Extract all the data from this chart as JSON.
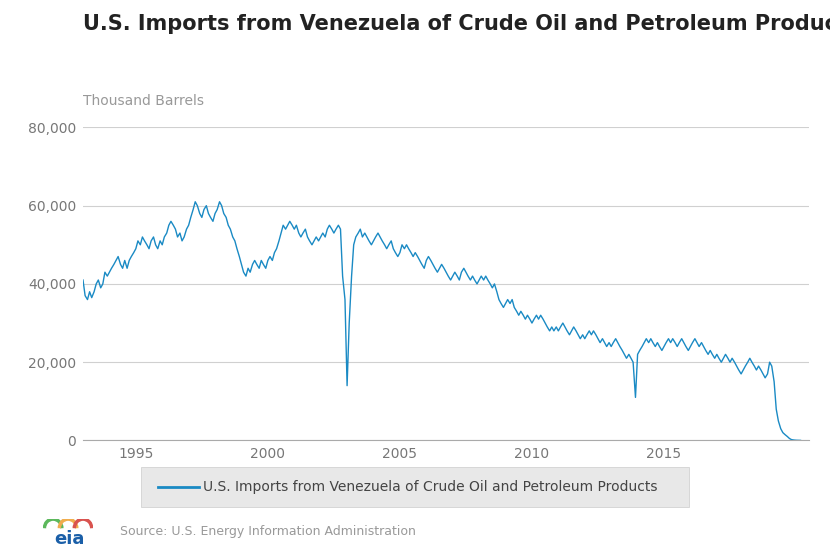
{
  "title": "U.S. Imports from Venezuela of Crude Oil and Petroleum Products",
  "ylabel": "Thousand Barrels",
  "legend_label": "U.S. Imports from Venezuela of Crude Oil and Petroleum Products",
  "source": "Source: U.S. Energy Information Administration",
  "line_color": "#1a8ac4",
  "background_color": "#ffffff",
  "ylim": [
    0,
    80000
  ],
  "yticks": [
    0,
    20000,
    40000,
    60000,
    80000
  ],
  "ytick_labels": [
    "0",
    "20,000",
    "40,000",
    "60,000",
    "80,000"
  ],
  "xtick_years": [
    1995,
    2000,
    2005,
    2010,
    2015
  ],
  "xmin": 1993.0,
  "xmax": 2020.5,
  "title_fontsize": 15,
  "ylabel_fontsize": 10,
  "tick_fontsize": 10,
  "legend_fontsize": 10,
  "source_fontsize": 9,
  "data": [
    [
      1993.0,
      41000
    ],
    [
      1993.08,
      37000
    ],
    [
      1993.17,
      36000
    ],
    [
      1993.25,
      38000
    ],
    [
      1993.33,
      36500
    ],
    [
      1993.42,
      38000
    ],
    [
      1993.5,
      40000
    ],
    [
      1993.58,
      41000
    ],
    [
      1993.67,
      39000
    ],
    [
      1993.75,
      40000
    ],
    [
      1993.83,
      43000
    ],
    [
      1993.92,
      42000
    ],
    [
      1994.0,
      43000
    ],
    [
      1994.08,
      44000
    ],
    [
      1994.17,
      45000
    ],
    [
      1994.25,
      46000
    ],
    [
      1994.33,
      47000
    ],
    [
      1994.42,
      45000
    ],
    [
      1994.5,
      44000
    ],
    [
      1994.58,
      46000
    ],
    [
      1994.67,
      44000
    ],
    [
      1994.75,
      46000
    ],
    [
      1994.83,
      47000
    ],
    [
      1994.92,
      48000
    ],
    [
      1995.0,
      49000
    ],
    [
      1995.08,
      51000
    ],
    [
      1995.17,
      50000
    ],
    [
      1995.25,
      52000
    ],
    [
      1995.33,
      51000
    ],
    [
      1995.42,
      50000
    ],
    [
      1995.5,
      49000
    ],
    [
      1995.58,
      51000
    ],
    [
      1995.67,
      52000
    ],
    [
      1995.75,
      50000
    ],
    [
      1995.83,
      49000
    ],
    [
      1995.92,
      51000
    ],
    [
      1996.0,
      50000
    ],
    [
      1996.08,
      52000
    ],
    [
      1996.17,
      53000
    ],
    [
      1996.25,
      55000
    ],
    [
      1996.33,
      56000
    ],
    [
      1996.42,
      55000
    ],
    [
      1996.5,
      54000
    ],
    [
      1996.58,
      52000
    ],
    [
      1996.67,
      53000
    ],
    [
      1996.75,
      51000
    ],
    [
      1996.83,
      52000
    ],
    [
      1996.92,
      54000
    ],
    [
      1997.0,
      55000
    ],
    [
      1997.08,
      57000
    ],
    [
      1997.17,
      59000
    ],
    [
      1997.25,
      61000
    ],
    [
      1997.33,
      60000
    ],
    [
      1997.42,
      58000
    ],
    [
      1997.5,
      57000
    ],
    [
      1997.58,
      59000
    ],
    [
      1997.67,
      60000
    ],
    [
      1997.75,
      58000
    ],
    [
      1997.83,
      57000
    ],
    [
      1997.92,
      56000
    ],
    [
      1998.0,
      58000
    ],
    [
      1998.08,
      59000
    ],
    [
      1998.17,
      61000
    ],
    [
      1998.25,
      60000
    ],
    [
      1998.33,
      58000
    ],
    [
      1998.42,
      57000
    ],
    [
      1998.5,
      55000
    ],
    [
      1998.58,
      54000
    ],
    [
      1998.67,
      52000
    ],
    [
      1998.75,
      51000
    ],
    [
      1998.83,
      49000
    ],
    [
      1998.92,
      47000
    ],
    [
      1999.0,
      45000
    ],
    [
      1999.08,
      43000
    ],
    [
      1999.17,
      42000
    ],
    [
      1999.25,
      44000
    ],
    [
      1999.33,
      43000
    ],
    [
      1999.42,
      45000
    ],
    [
      1999.5,
      46000
    ],
    [
      1999.58,
      45000
    ],
    [
      1999.67,
      44000
    ],
    [
      1999.75,
      46000
    ],
    [
      1999.83,
      45000
    ],
    [
      1999.92,
      44000
    ],
    [
      2000.0,
      46000
    ],
    [
      2000.08,
      47000
    ],
    [
      2000.17,
      46000
    ],
    [
      2000.25,
      48000
    ],
    [
      2000.33,
      49000
    ],
    [
      2000.42,
      51000
    ],
    [
      2000.5,
      53000
    ],
    [
      2000.58,
      55000
    ],
    [
      2000.67,
      54000
    ],
    [
      2000.75,
      55000
    ],
    [
      2000.83,
      56000
    ],
    [
      2000.92,
      55000
    ],
    [
      2001.0,
      54000
    ],
    [
      2001.08,
      55000
    ],
    [
      2001.17,
      53000
    ],
    [
      2001.25,
      52000
    ],
    [
      2001.33,
      53000
    ],
    [
      2001.42,
      54000
    ],
    [
      2001.5,
      52000
    ],
    [
      2001.58,
      51000
    ],
    [
      2001.67,
      50000
    ],
    [
      2001.75,
      51000
    ],
    [
      2001.83,
      52000
    ],
    [
      2001.92,
      51000
    ],
    [
      2002.0,
      52000
    ],
    [
      2002.08,
      53000
    ],
    [
      2002.17,
      52000
    ],
    [
      2002.25,
      54000
    ],
    [
      2002.33,
      55000
    ],
    [
      2002.42,
      54000
    ],
    [
      2002.5,
      53000
    ],
    [
      2002.58,
      54000
    ],
    [
      2002.67,
      55000
    ],
    [
      2002.75,
      54000
    ],
    [
      2002.83,
      42000
    ],
    [
      2002.92,
      36000
    ],
    [
      2003.0,
      14000
    ],
    [
      2003.08,
      30000
    ],
    [
      2003.17,
      42000
    ],
    [
      2003.25,
      50000
    ],
    [
      2003.33,
      52000
    ],
    [
      2003.42,
      53000
    ],
    [
      2003.5,
      54000
    ],
    [
      2003.58,
      52000
    ],
    [
      2003.67,
      53000
    ],
    [
      2003.75,
      52000
    ],
    [
      2003.83,
      51000
    ],
    [
      2003.92,
      50000
    ],
    [
      2004.0,
      51000
    ],
    [
      2004.08,
      52000
    ],
    [
      2004.17,
      53000
    ],
    [
      2004.25,
      52000
    ],
    [
      2004.33,
      51000
    ],
    [
      2004.42,
      50000
    ],
    [
      2004.5,
      49000
    ],
    [
      2004.58,
      50000
    ],
    [
      2004.67,
      51000
    ],
    [
      2004.75,
      49000
    ],
    [
      2004.83,
      48000
    ],
    [
      2004.92,
      47000
    ],
    [
      2005.0,
      48000
    ],
    [
      2005.08,
      50000
    ],
    [
      2005.17,
      49000
    ],
    [
      2005.25,
      50000
    ],
    [
      2005.33,
      49000
    ],
    [
      2005.42,
      48000
    ],
    [
      2005.5,
      47000
    ],
    [
      2005.58,
      48000
    ],
    [
      2005.67,
      47000
    ],
    [
      2005.75,
      46000
    ],
    [
      2005.83,
      45000
    ],
    [
      2005.92,
      44000
    ],
    [
      2006.0,
      46000
    ],
    [
      2006.08,
      47000
    ],
    [
      2006.17,
      46000
    ],
    [
      2006.25,
      45000
    ],
    [
      2006.33,
      44000
    ],
    [
      2006.42,
      43000
    ],
    [
      2006.5,
      44000
    ],
    [
      2006.58,
      45000
    ],
    [
      2006.67,
      44000
    ],
    [
      2006.75,
      43000
    ],
    [
      2006.83,
      42000
    ],
    [
      2006.92,
      41000
    ],
    [
      2007.0,
      42000
    ],
    [
      2007.08,
      43000
    ],
    [
      2007.17,
      42000
    ],
    [
      2007.25,
      41000
    ],
    [
      2007.33,
      43000
    ],
    [
      2007.42,
      44000
    ],
    [
      2007.5,
      43000
    ],
    [
      2007.58,
      42000
    ],
    [
      2007.67,
      41000
    ],
    [
      2007.75,
      42000
    ],
    [
      2007.83,
      41000
    ],
    [
      2007.92,
      40000
    ],
    [
      2008.0,
      41000
    ],
    [
      2008.08,
      42000
    ],
    [
      2008.17,
      41000
    ],
    [
      2008.25,
      42000
    ],
    [
      2008.33,
      41000
    ],
    [
      2008.42,
      40000
    ],
    [
      2008.5,
      39000
    ],
    [
      2008.58,
      40000
    ],
    [
      2008.67,
      38000
    ],
    [
      2008.75,
      36000
    ],
    [
      2008.83,
      35000
    ],
    [
      2008.92,
      34000
    ],
    [
      2009.0,
      35000
    ],
    [
      2009.08,
      36000
    ],
    [
      2009.17,
      35000
    ],
    [
      2009.25,
      36000
    ],
    [
      2009.33,
      34000
    ],
    [
      2009.42,
      33000
    ],
    [
      2009.5,
      32000
    ],
    [
      2009.58,
      33000
    ],
    [
      2009.67,
      32000
    ],
    [
      2009.75,
      31000
    ],
    [
      2009.83,
      32000
    ],
    [
      2009.92,
      31000
    ],
    [
      2010.0,
      30000
    ],
    [
      2010.08,
      31000
    ],
    [
      2010.17,
      32000
    ],
    [
      2010.25,
      31000
    ],
    [
      2010.33,
      32000
    ],
    [
      2010.42,
      31000
    ],
    [
      2010.5,
      30000
    ],
    [
      2010.58,
      29000
    ],
    [
      2010.67,
      28000
    ],
    [
      2010.75,
      29000
    ],
    [
      2010.83,
      28000
    ],
    [
      2010.92,
      29000
    ],
    [
      2011.0,
      28000
    ],
    [
      2011.08,
      29000
    ],
    [
      2011.17,
      30000
    ],
    [
      2011.25,
      29000
    ],
    [
      2011.33,
      28000
    ],
    [
      2011.42,
      27000
    ],
    [
      2011.5,
      28000
    ],
    [
      2011.58,
      29000
    ],
    [
      2011.67,
      28000
    ],
    [
      2011.75,
      27000
    ],
    [
      2011.83,
      26000
    ],
    [
      2011.92,
      27000
    ],
    [
      2012.0,
      26000
    ],
    [
      2012.08,
      27000
    ],
    [
      2012.17,
      28000
    ],
    [
      2012.25,
      27000
    ],
    [
      2012.33,
      28000
    ],
    [
      2012.42,
      27000
    ],
    [
      2012.5,
      26000
    ],
    [
      2012.58,
      25000
    ],
    [
      2012.67,
      26000
    ],
    [
      2012.75,
      25000
    ],
    [
      2012.83,
      24000
    ],
    [
      2012.92,
      25000
    ],
    [
      2013.0,
      24000
    ],
    [
      2013.08,
      25000
    ],
    [
      2013.17,
      26000
    ],
    [
      2013.25,
      25000
    ],
    [
      2013.33,
      24000
    ],
    [
      2013.42,
      23000
    ],
    [
      2013.5,
      22000
    ],
    [
      2013.58,
      21000
    ],
    [
      2013.67,
      22000
    ],
    [
      2013.75,
      21000
    ],
    [
      2013.83,
      20000
    ],
    [
      2013.92,
      11000
    ],
    [
      2014.0,
      22000
    ],
    [
      2014.08,
      23000
    ],
    [
      2014.17,
      24000
    ],
    [
      2014.25,
      25000
    ],
    [
      2014.33,
      26000
    ],
    [
      2014.42,
      25000
    ],
    [
      2014.5,
      26000
    ],
    [
      2014.58,
      25000
    ],
    [
      2014.67,
      24000
    ],
    [
      2014.75,
      25000
    ],
    [
      2014.83,
      24000
    ],
    [
      2014.92,
      23000
    ],
    [
      2015.0,
      24000
    ],
    [
      2015.08,
      25000
    ],
    [
      2015.17,
      26000
    ],
    [
      2015.25,
      25000
    ],
    [
      2015.33,
      26000
    ],
    [
      2015.42,
      25000
    ],
    [
      2015.5,
      24000
    ],
    [
      2015.58,
      25000
    ],
    [
      2015.67,
      26000
    ],
    [
      2015.75,
      25000
    ],
    [
      2015.83,
      24000
    ],
    [
      2015.92,
      23000
    ],
    [
      2016.0,
      24000
    ],
    [
      2016.08,
      25000
    ],
    [
      2016.17,
      26000
    ],
    [
      2016.25,
      25000
    ],
    [
      2016.33,
      24000
    ],
    [
      2016.42,
      25000
    ],
    [
      2016.5,
      24000
    ],
    [
      2016.58,
      23000
    ],
    [
      2016.67,
      22000
    ],
    [
      2016.75,
      23000
    ],
    [
      2016.83,
      22000
    ],
    [
      2016.92,
      21000
    ],
    [
      2017.0,
      22000
    ],
    [
      2017.08,
      21000
    ],
    [
      2017.17,
      20000
    ],
    [
      2017.25,
      21000
    ],
    [
      2017.33,
      22000
    ],
    [
      2017.42,
      21000
    ],
    [
      2017.5,
      20000
    ],
    [
      2017.58,
      21000
    ],
    [
      2017.67,
      20000
    ],
    [
      2017.75,
      19000
    ],
    [
      2017.83,
      18000
    ],
    [
      2017.92,
      17000
    ],
    [
      2018.0,
      18000
    ],
    [
      2018.08,
      19000
    ],
    [
      2018.17,
      20000
    ],
    [
      2018.25,
      21000
    ],
    [
      2018.33,
      20000
    ],
    [
      2018.42,
      19000
    ],
    [
      2018.5,
      18000
    ],
    [
      2018.58,
      19000
    ],
    [
      2018.67,
      18000
    ],
    [
      2018.75,
      17000
    ],
    [
      2018.83,
      16000
    ],
    [
      2018.92,
      17000
    ],
    [
      2019.0,
      20000
    ],
    [
      2019.08,
      19000
    ],
    [
      2019.17,
      15000
    ],
    [
      2019.25,
      8000
    ],
    [
      2019.33,
      5000
    ],
    [
      2019.42,
      3000
    ],
    [
      2019.5,
      2000
    ],
    [
      2019.58,
      1500
    ],
    [
      2019.67,
      1000
    ],
    [
      2019.75,
      500
    ],
    [
      2019.83,
      200
    ],
    [
      2019.92,
      100
    ],
    [
      2020.0,
      50
    ],
    [
      2020.08,
      30
    ],
    [
      2020.17,
      10
    ]
  ]
}
